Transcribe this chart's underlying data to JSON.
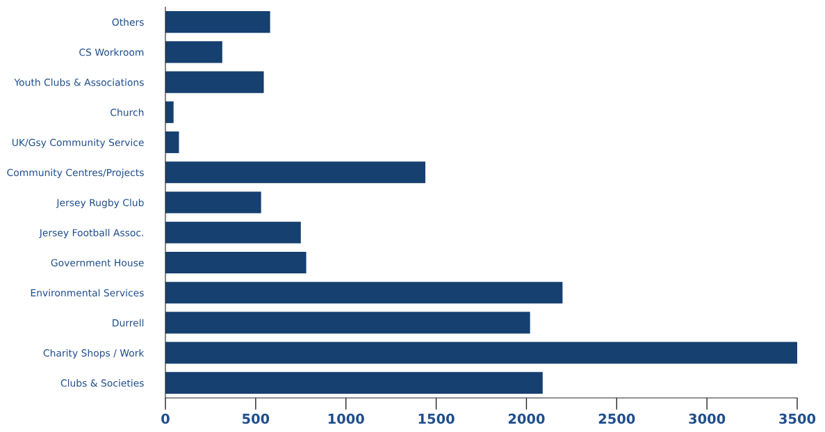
{
  "chart_data": {
    "type": "bar",
    "orientation": "horizontal",
    "categories": [
      "Others",
      "CS Workroom",
      "Youth Clubs & Associations",
      "Church",
      "UK/Gsy Community Service",
      "Community Centres/Projects",
      "Jersey Rugby Club",
      "Jersey Football Assoc.",
      "Government House",
      "Environmental Services",
      "Durrell",
      "Charity Shops / Work",
      "Clubs & Societies"
    ],
    "values": [
      580,
      315,
      545,
      45,
      75,
      1440,
      530,
      750,
      780,
      2200,
      2020,
      3500,
      2090
    ],
    "color": "#15406f",
    "xlim": [
      0,
      3500
    ],
    "xticks": [
      0,
      500,
      1000,
      1500,
      2000,
      2500,
      3000,
      3500
    ],
    "grid": false,
    "legend": false
  }
}
